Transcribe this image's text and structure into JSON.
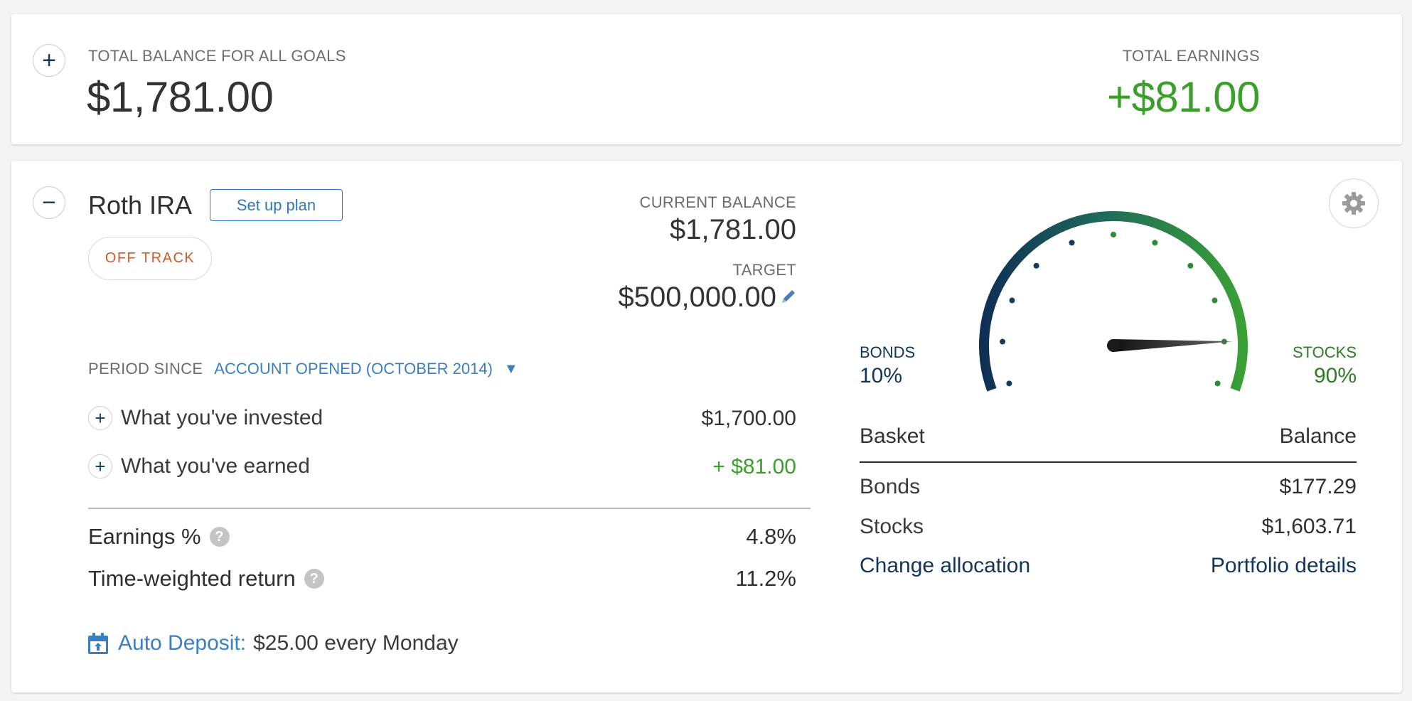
{
  "summary": {
    "total_balance_label": "TOTAL BALANCE FOR ALL GOALS",
    "total_balance": "$1,781.00",
    "total_earnings_label": "TOTAL EARNINGS",
    "total_earnings": "+$81.00",
    "expand_icon": "+"
  },
  "goal": {
    "collapse_icon": "−",
    "name": "Roth IRA",
    "setup_plan_label": "Set up plan",
    "status_badge": "OFF TRACK",
    "current_balance_label": "CURRENT BALANCE",
    "current_balance": "$1,781.00",
    "target_label": "TARGET",
    "target": "$500,000.00",
    "period_since_label": "PERIOD SINCE",
    "period_value": "ACCOUNT OPENED (OCTOBER 2014)",
    "period_dropdown_icon": "▼",
    "rows": [
      {
        "icon": "+",
        "label": "What you've invested",
        "value": "$1,700.00"
      },
      {
        "icon": "+",
        "label": "What you've earned",
        "value": "+ $81.00"
      }
    ],
    "metrics": [
      {
        "label": "Earnings %",
        "help": "?",
        "value": "4.8%"
      },
      {
        "label": "Time-weighted return",
        "help": "?",
        "value": "11.2%"
      }
    ],
    "auto_deposit_label": "Auto Deposit:",
    "auto_deposit_value": "$25.00 every Monday"
  },
  "allocation": {
    "bonds_label": "BONDS",
    "bonds_pct": "10%",
    "stocks_label": "STOCKS",
    "stocks_pct": "90%",
    "stocks_fraction": 0.9,
    "table_headers": {
      "basket": "Basket",
      "balance": "Balance"
    },
    "table_rows": [
      {
        "basket": "Bonds",
        "balance": "$177.29"
      },
      {
        "basket": "Stocks",
        "balance": "$1,603.71"
      }
    ],
    "change_allocation_label": "Change allocation",
    "portfolio_details_label": "Portfolio details"
  },
  "colors": {
    "navy": "#13355a",
    "green": "#3a9f2b",
    "link_blue": "#3a7fc1",
    "off_track": "#cc5a2a"
  },
  "icons": {
    "gear": "gear-icon",
    "pencil": "pencil-icon",
    "calendar": "calendar-deposit-icon"
  }
}
